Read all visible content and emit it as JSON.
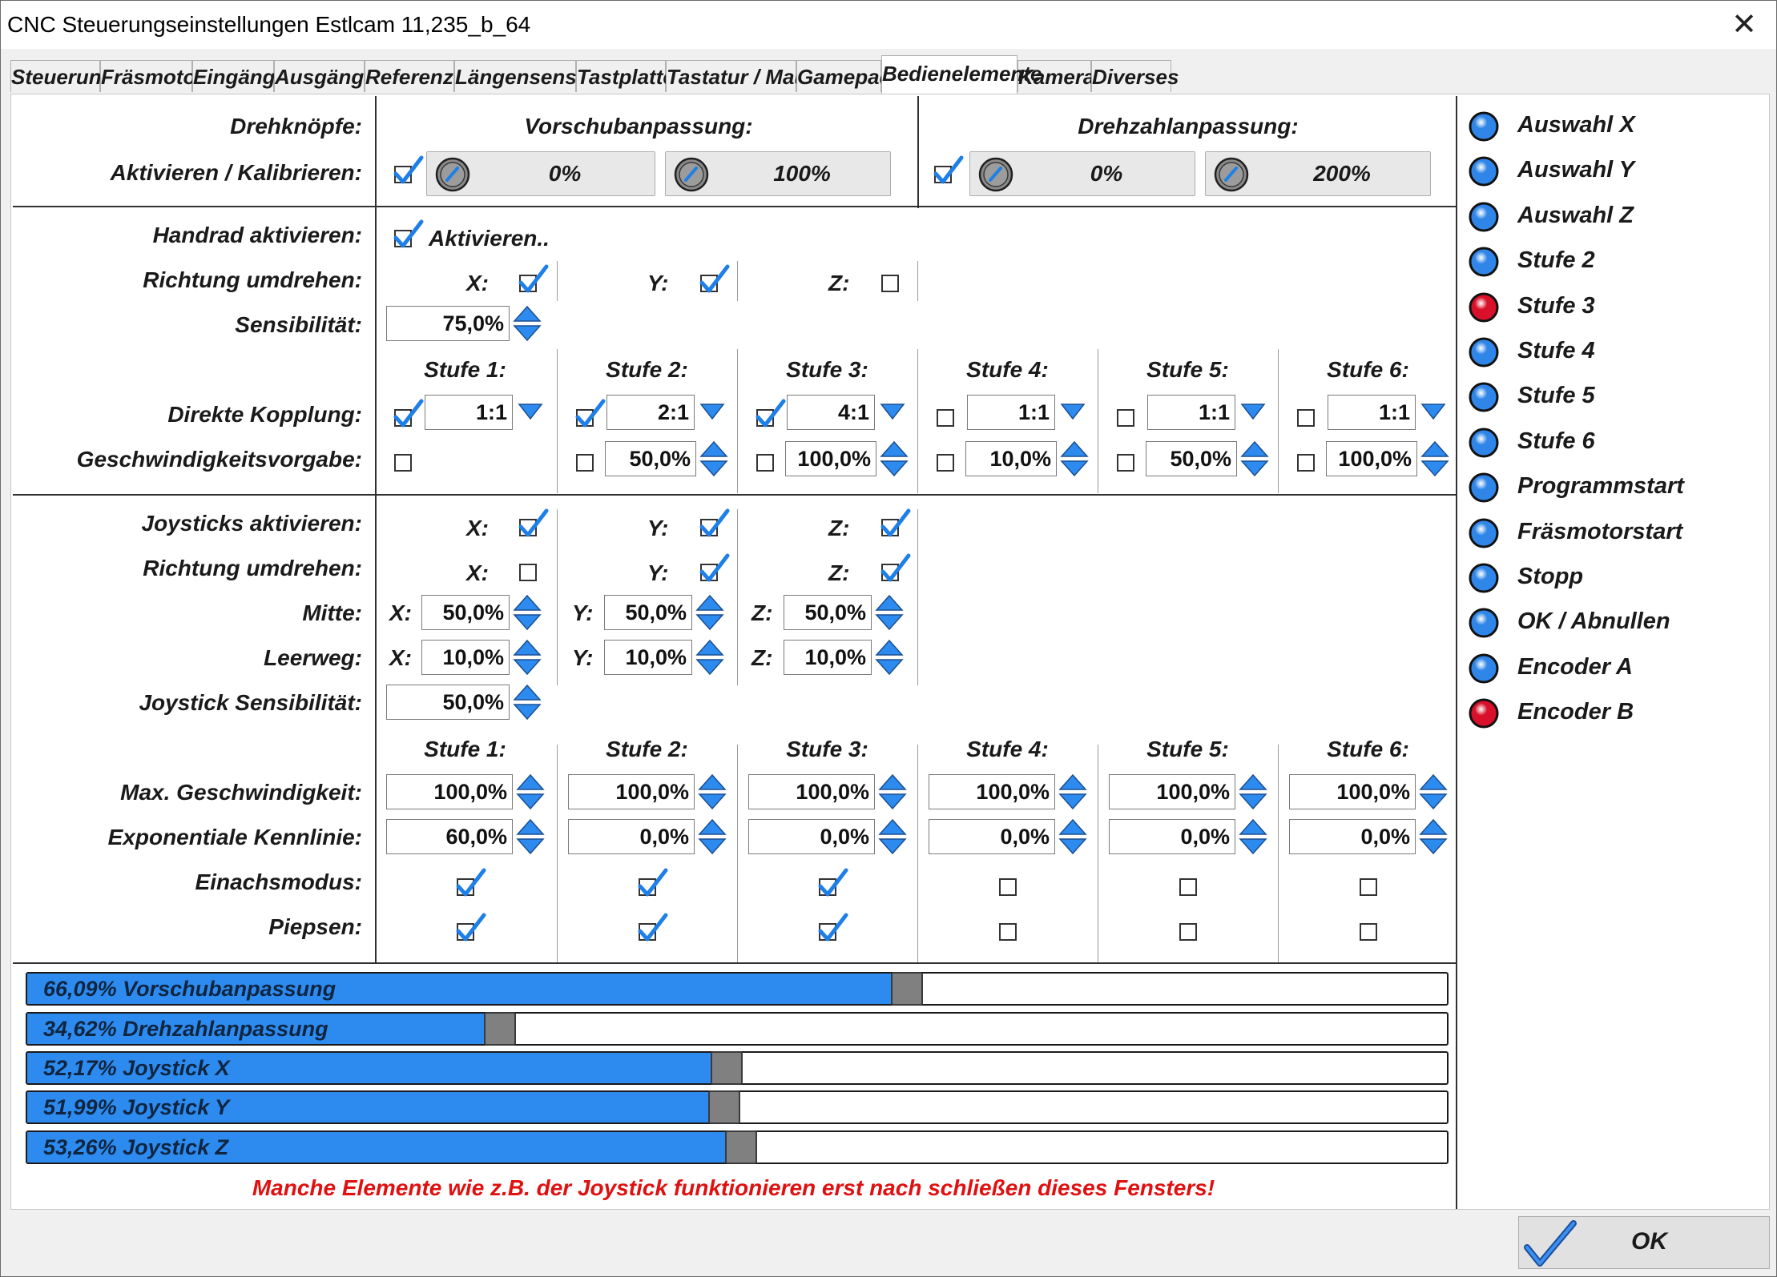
{
  "window": {
    "title": "CNC Steuerungseinstellungen Estlcam 11,235_b_64",
    "close_glyph": "✕"
  },
  "tabs": [
    "Steuerung",
    "Fräsmotor",
    "Eingänge",
    "Ausgänge",
    "Referenzf.",
    "Längensensor",
    "Tastplatte",
    "Tastatur / Maus",
    "Gamepad",
    "Bedienelemente",
    "Kamera",
    "Diverses"
  ],
  "active_tab": "Bedienelemente",
  "knobs": {
    "label_row1": "Drehknöpfe:",
    "label_row2": "Aktivieren / Kalibrieren:",
    "feed": {
      "header": "Vorschubanpassung:",
      "enabled": true,
      "min": "0%",
      "max": "100%"
    },
    "speed": {
      "header": "Drehzahlanpassung:",
      "enabled": true,
      "min": "0%",
      "max": "200%"
    }
  },
  "handwheel": {
    "enable_label": "Handrad aktivieren:",
    "enable_text": "Aktivieren..",
    "enabled": true,
    "reverse_label": "Richtung umdrehen:",
    "reverse": [
      {
        "axis": "X:",
        "checked": true
      },
      {
        "axis": "Y:",
        "checked": true
      },
      {
        "axis": "Z:",
        "checked": false
      }
    ],
    "sens_label": "Sensibilität:",
    "sensitivity": "75,0%",
    "coupling_label": "Direkte Kopplung:",
    "speed_label": "Geschwindigkeitsvorgabe:",
    "stages": [
      {
        "header": "Stufe 1:",
        "coupling_on": true,
        "ratio": "1:1",
        "speed_on": false,
        "speed": ""
      },
      {
        "header": "Stufe 2:",
        "coupling_on": true,
        "ratio": "2:1",
        "speed_on": false,
        "speed": "50,0%"
      },
      {
        "header": "Stufe 3:",
        "coupling_on": true,
        "ratio": "4:1",
        "speed_on": false,
        "speed": "100,0%"
      },
      {
        "header": "Stufe 4:",
        "coupling_on": false,
        "ratio": "1:1",
        "speed_on": false,
        "speed": "10,0%"
      },
      {
        "header": "Stufe 5:",
        "coupling_on": false,
        "ratio": "1:1",
        "speed_on": false,
        "speed": "50,0%"
      },
      {
        "header": "Stufe 6:",
        "coupling_on": false,
        "ratio": "1:1",
        "speed_on": false,
        "speed": "100,0%"
      }
    ]
  },
  "joystick": {
    "enable_label": "Joysticks aktivieren:",
    "enable": [
      {
        "axis": "X:",
        "checked": true
      },
      {
        "axis": "Y:",
        "checked": true
      },
      {
        "axis": "Z:",
        "checked": true
      }
    ],
    "reverse_label": "Richtung umdrehen:",
    "reverse": [
      {
        "axis": "X:",
        "checked": false
      },
      {
        "axis": "Y:",
        "checked": true
      },
      {
        "axis": "Z:",
        "checked": true
      }
    ],
    "center_label": "Mitte:",
    "center": [
      {
        "axis": "X:",
        "value": "50,0%"
      },
      {
        "axis": "Y:",
        "value": "50,0%"
      },
      {
        "axis": "Z:",
        "value": "50,0%"
      }
    ],
    "deadzone_label": "Leerweg:",
    "deadzone": [
      {
        "axis": "X:",
        "value": "10,0%"
      },
      {
        "axis": "Y:",
        "value": "10,0%"
      },
      {
        "axis": "Z:",
        "value": "10,0%"
      }
    ],
    "sens_label": "Joystick Sensibilität:",
    "sensitivity": "50,0%",
    "maxspeed_label": "Max. Geschwindigkeit:",
    "expo_label": "Exponentiale Kennlinie:",
    "single_label": "Einachsmodus:",
    "beep_label": "Piepsen:",
    "stages": [
      {
        "header": "Stufe 1:",
        "max": "100,0%",
        "expo": "60,0%",
        "single": true,
        "beep": true
      },
      {
        "header": "Stufe 2:",
        "max": "100,0%",
        "expo": "0,0%",
        "single": true,
        "beep": true
      },
      {
        "header": "Stufe 3:",
        "max": "100,0%",
        "expo": "0,0%",
        "single": true,
        "beep": true
      },
      {
        "header": "Stufe 4:",
        "max": "100,0%",
        "expo": "0,0%",
        "single": false,
        "beep": false
      },
      {
        "header": "Stufe 5:",
        "max": "100,0%",
        "expo": "0,0%",
        "single": false,
        "beep": false
      },
      {
        "header": "Stufe 6:",
        "max": "100,0%",
        "expo": "0,0%",
        "single": false,
        "beep": false
      }
    ]
  },
  "inputs_status": [
    {
      "label": "Auswahl X",
      "state": "off"
    },
    {
      "label": "Auswahl Y",
      "state": "off"
    },
    {
      "label": "Auswahl Z",
      "state": "off"
    },
    {
      "label": "Stufe 2",
      "state": "off"
    },
    {
      "label": "Stufe 3",
      "state": "on"
    },
    {
      "label": "Stufe 4",
      "state": "off"
    },
    {
      "label": "Stufe 5",
      "state": "off"
    },
    {
      "label": "Stufe 6",
      "state": "off"
    },
    {
      "label": "Programmstart",
      "state": "off"
    },
    {
      "label": "Fräsmotorstart",
      "state": "off"
    },
    {
      "label": "Stopp",
      "state": "off"
    },
    {
      "label": "OK / Abnullen",
      "state": "off"
    },
    {
      "label": "Encoder A",
      "state": "off"
    },
    {
      "label": "Encoder B",
      "state": "on"
    }
  ],
  "led_colors": {
    "off": "#2f86e8",
    "on": "#d8102a"
  },
  "bars": [
    {
      "label": "66,09% Vorschubanpassung",
      "fraction": 0.6609
    },
    {
      "label": "34,62% Drehzahlanpassung",
      "fraction": 0.3462
    },
    {
      "label": "52,17% Joystick X",
      "fraction": 0.5217
    },
    {
      "label": "51,99% Joystick Y",
      "fraction": 0.5199
    },
    {
      "label": "53,26% Joystick Z",
      "fraction": 0.5326
    }
  ],
  "warning": "Manche Elemente wie z.B. der Joystick funktionieren erst nach schließen dieses Fensters!",
  "ok_label": "OK"
}
